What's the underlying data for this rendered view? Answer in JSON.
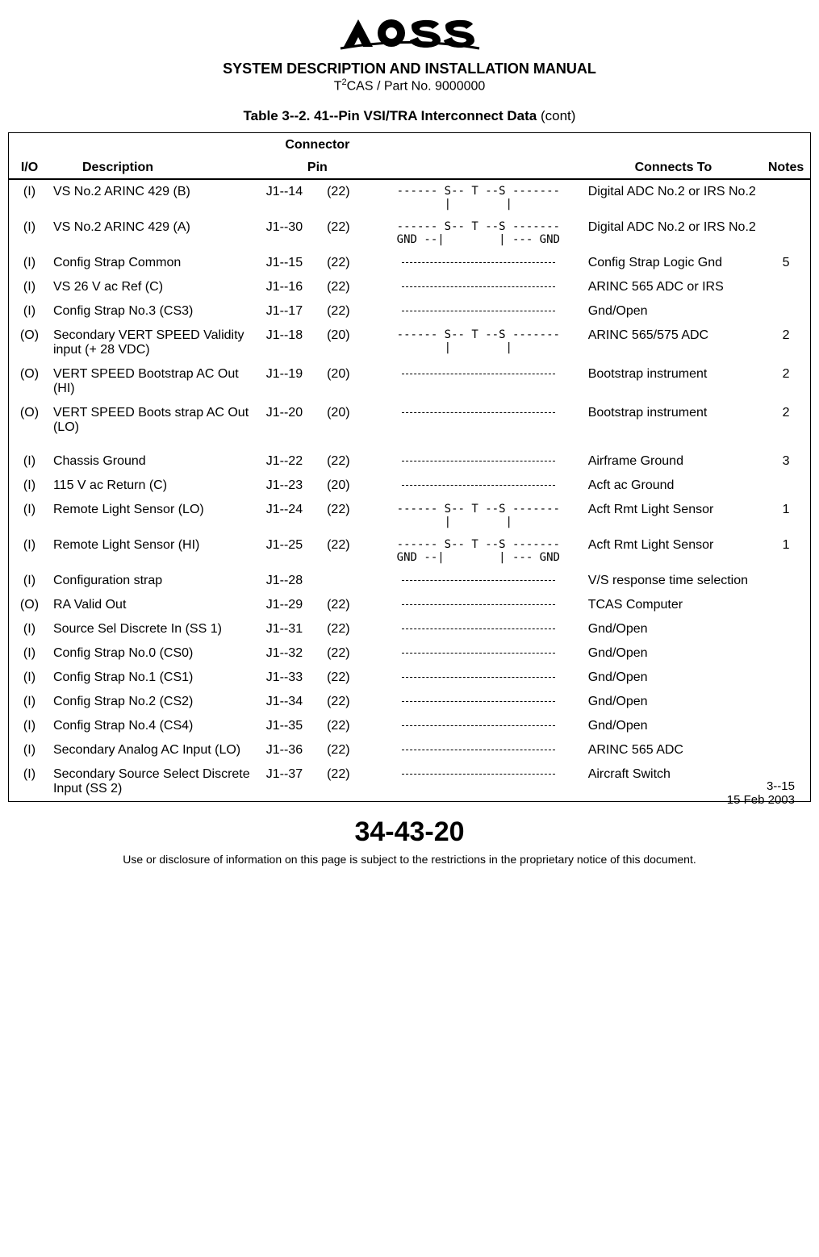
{
  "header": {
    "manual_title": "SYSTEM DESCRIPTION AND INSTALLATION MANUAL",
    "sub_title_prefix": "T",
    "sub_title_sup": "2",
    "sub_title_rest": "CAS / Part No. 9000000"
  },
  "table_title": {
    "label": "Table 3--2.",
    "text": "  41--Pin VSI/TRA Interconnect Data ",
    "cont": "(cont)"
  },
  "columns": {
    "io": "I/O",
    "desc": "Description",
    "conn_top": "Connector",
    "conn_bot": "Pin",
    "connects": "Connects To",
    "notes": "Notes"
  },
  "rows": [
    {
      "io": "(I)",
      "desc": "VS No.2 ARINC 429 (B)",
      "pin1": "J1--14",
      "pin2": "(22)",
      "wire": "------ S-- T --S -------\n       |        |       ",
      "conn": "Digital ADC No.2 or IRS No.2",
      "notes": ""
    },
    {
      "io": "(I)",
      "desc": "VS No.2 ARINC 429 (A)",
      "pin1": "J1--30",
      "pin2": "(22)",
      "wire": "------ S-- T --S -------\nGND --|        | --- GND",
      "conn": "Digital ADC No.2 or IRS No.2",
      "notes": ""
    },
    {
      "io": "(I)",
      "desc": "Config Strap Common",
      "pin1": "J1--15",
      "pin2": "(22)",
      "wire": "DASH",
      "conn": "Config Strap Logic Gnd",
      "notes": "5"
    },
    {
      "io": "(I)",
      "desc": "VS 26 V ac Ref (C)",
      "pin1": "J1--16",
      "pin2": "(22)",
      "wire": "DASH",
      "conn": "ARINC 565 ADC or IRS",
      "notes": ""
    },
    {
      "io": "(I)",
      "desc": "Config Strap No.3 (CS3)",
      "pin1": "J1--17",
      "pin2": "(22)",
      "wire": "DASH",
      "conn": "Gnd/Open",
      "notes": ""
    },
    {
      "io": "(O)",
      "desc": "Secondary VERT SPEED Validity input (+ 28 VDC)",
      "pin1": "J1--18",
      "pin2": "(20)",
      "wire": "------ S-- T --S -------\n       |        |       ",
      "conn": "ARINC 565/575 ADC",
      "notes": "2"
    },
    {
      "io": "(O)",
      "desc": "VERT SPEED Bootstrap AC Out (HI)",
      "pin1": "J1--19",
      "pin2": "(20)",
      "wire": "DASH",
      "conn": "Bootstrap instrument",
      "notes": "2"
    },
    {
      "io": "(O)",
      "desc": "VERT SPEED Boots strap AC Out (LO)",
      "pin1": "J1--20",
      "pin2": "(20)",
      "wire": "DASH",
      "conn": "Bootstrap instrument",
      "notes": "2"
    },
    {
      "io": "",
      "desc": "",
      "pin1": "",
      "pin2": "",
      "wire": "",
      "conn": "",
      "notes": ""
    },
    {
      "io": "(I)",
      "desc": "Chassis Ground",
      "pin1": "J1--22",
      "pin2": "(22)",
      "wire": "DASH",
      "conn": "Airframe Ground",
      "notes": "3"
    },
    {
      "io": "(I)",
      "desc": "115 V ac Return (C)",
      "pin1": "J1--23",
      "pin2": "(20)",
      "wire": "DASH",
      "conn": "Acft ac Ground",
      "notes": ""
    },
    {
      "io": "(I)",
      "desc": "Remote Light Sensor (LO)",
      "pin1": "J1--24",
      "pin2": "(22)",
      "wire": "------ S-- T --S -------\n       |        |       ",
      "conn": "Acft Rmt Light Sensor",
      "notes": "1"
    },
    {
      "io": "(I)",
      "desc": "Remote Light Sensor (HI)",
      "pin1": "J1--25",
      "pin2": "(22)",
      "wire": "------ S-- T --S -------\nGND --|        | --- GND",
      "conn": "Acft Rmt Light Sensor",
      "notes": "1"
    },
    {
      "io": "(I)",
      "desc": "Configuration strap",
      "pin1": "J1--28",
      "pin2": "",
      "wire": "DASH",
      "conn": "V/S response time selection",
      "notes": ""
    },
    {
      "io": "(O)",
      "desc": "RA Valid Out",
      "pin1": "J1--29",
      "pin2": "(22)",
      "wire": "DASH",
      "conn": "TCAS Computer",
      "notes": ""
    },
    {
      "io": "(I)",
      "desc": "Source Sel Discrete In (SS 1)",
      "pin1": "J1--31",
      "pin2": "(22)",
      "wire": "DASH",
      "conn": "Gnd/Open",
      "notes": ""
    },
    {
      "io": "(I)",
      "desc": "Config Strap No.0 (CS0)",
      "pin1": "J1--32",
      "pin2": "(22)",
      "wire": "DASH",
      "conn": "Gnd/Open",
      "notes": ""
    },
    {
      "io": "(I)",
      "desc": "Config Strap No.1 (CS1)",
      "pin1": "J1--33",
      "pin2": "(22)",
      "wire": "DASH",
      "conn": "Gnd/Open",
      "notes": ""
    },
    {
      "io": "(I)",
      "desc": "Config Strap No.2 (CS2)",
      "pin1": "J1--34",
      "pin2": "(22)",
      "wire": "DASH",
      "conn": "Gnd/Open",
      "notes": ""
    },
    {
      "io": "(I)",
      "desc": "Config Strap No.4 (CS4)",
      "pin1": "J1--35",
      "pin2": "(22)",
      "wire": "DASH",
      "conn": "Gnd/Open",
      "notes": ""
    },
    {
      "io": "(I)",
      "desc": "Secondary Analog AC Input (LO)",
      "pin1": "J1--36",
      "pin2": "(22)",
      "wire": "DASH",
      "conn": "ARINC 565 ADC",
      "notes": ""
    },
    {
      "io": "(I)",
      "desc": "Secondary Source Select Discrete Input (SS 2)",
      "pin1": "J1--37",
      "pin2": "(22)",
      "wire": "DASH",
      "conn": "Aircraft Switch",
      "notes": ""
    }
  ],
  "footer": {
    "doc_no": "34-43-20",
    "page_no": "3--15",
    "date": "15 Feb 2003",
    "restriction": "Use or disclosure of information on this page is subject to the restrictions in the proprietary notice of this document."
  }
}
